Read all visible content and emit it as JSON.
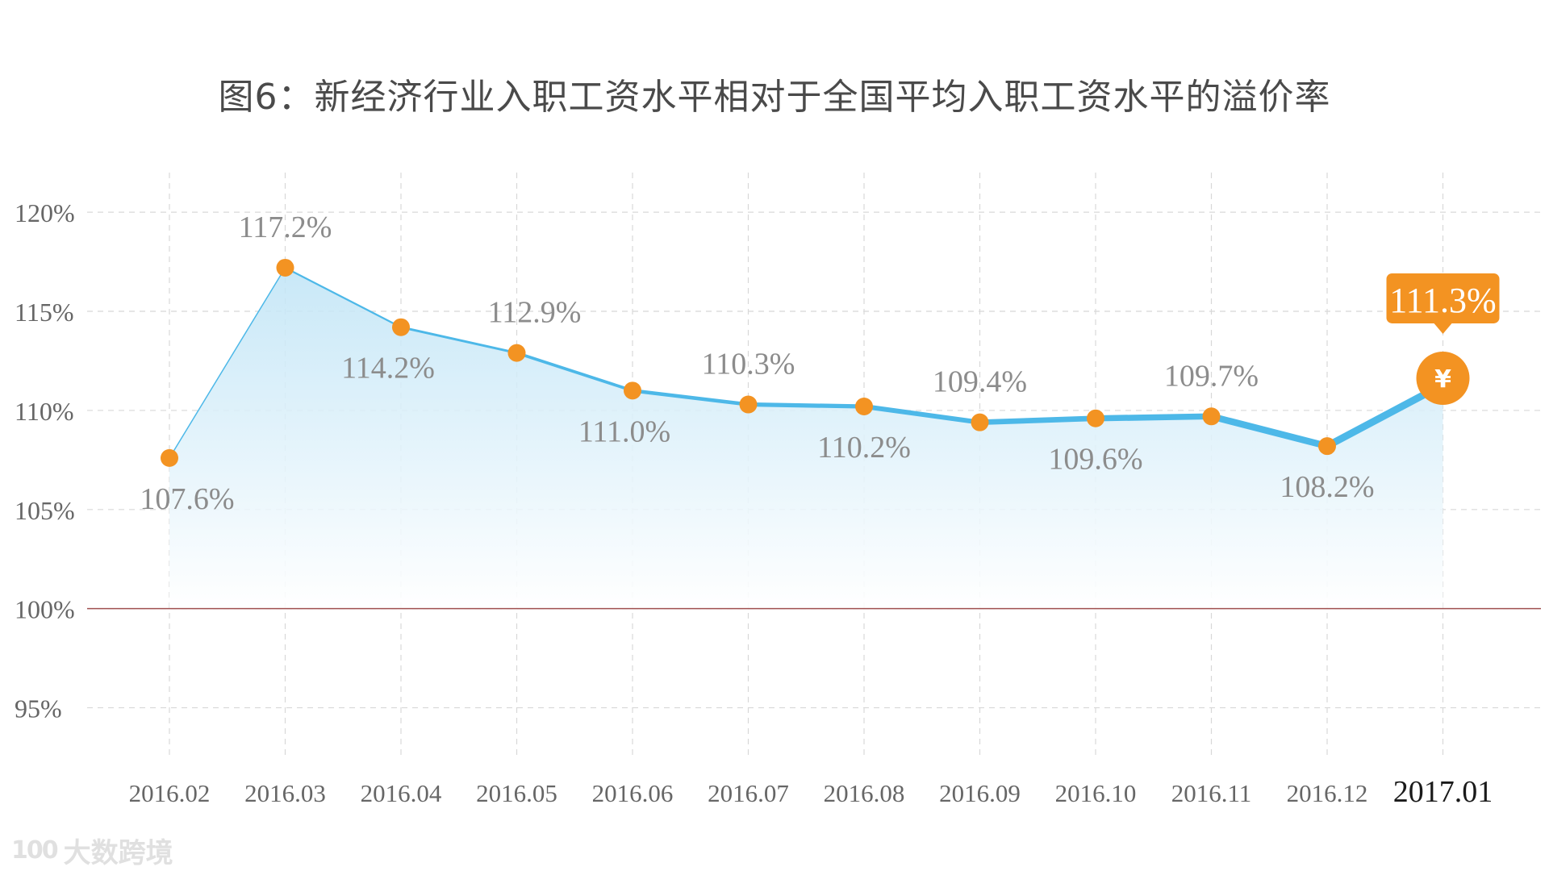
{
  "chart_data": {
    "type": "area",
    "title": "图6：新经济行业入职工资水平相对于全国平均入职工资水平的溢价率",
    "categories": [
      "2016.02",
      "2016.03",
      "2016.04",
      "2016.05",
      "2016.06",
      "2016.07",
      "2016.08",
      "2016.09",
      "2016.10",
      "2016.11",
      "2016.12",
      "2017.01"
    ],
    "series": [
      {
        "values": [
          107.6,
          117.2,
          114.2,
          112.9,
          111.0,
          110.3,
          110.2,
          109.4,
          109.6,
          109.7,
          108.2,
          111.3
        ]
      }
    ],
    "data_labels": [
      "107.6%",
      "117.2%",
      "114.2%",
      "112.9%",
      "111.0%",
      "110.3%",
      "110.2%",
      "109.4%",
      "109.6%",
      "109.7%",
      "108.2%",
      "111.3%"
    ],
    "yticks": [
      95,
      100,
      105,
      110,
      115,
      120
    ],
    "ytick_labels": [
      "95%",
      "100%",
      "105%",
      "110%",
      "115%",
      "120%"
    ],
    "ylim": [
      92.5,
      122
    ],
    "reference_line": 100,
    "highlight_index": 11,
    "highlight_icon": "¥",
    "grid": true,
    "colors": {
      "line": "#4db8e8",
      "marker": "#f39322",
      "area_top": "#bfe4f6",
      "reference": "#a05050",
      "label": "#8c8c8c",
      "grid": "#d8d8d8",
      "highlight_text": "#ffffff",
      "last_tick": "#1a1a1a",
      "axis_text": "#666666"
    }
  },
  "watermark": {
    "logo": "100",
    "text": "大数跨境"
  }
}
